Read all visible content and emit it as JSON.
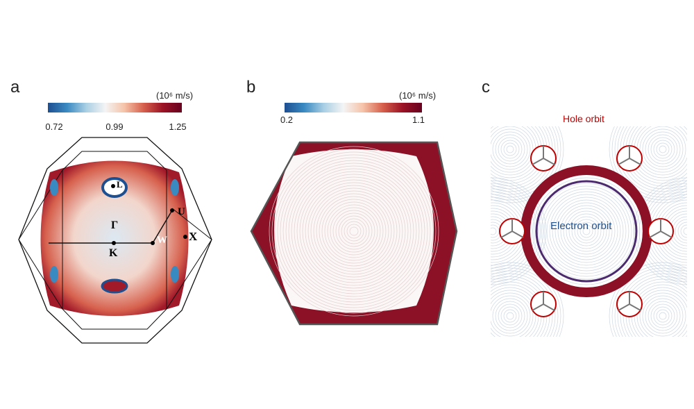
{
  "panels": [
    {
      "label": "a",
      "colorbar": {
        "unit": "(10⁶ m/s)",
        "ticks": [
          "0.72",
          "0.99",
          "1.25"
        ]
      },
      "points": {
        "gamma": "Γ",
        "k": "K",
        "w": "W",
        "u": "U",
        "x": "X",
        "l": "L"
      }
    },
    {
      "label": "b",
      "colorbar": {
        "unit": "(10⁶ m/s)",
        "ticks": [
          "0.2",
          "1.1"
        ]
      }
    },
    {
      "label": "c",
      "annotations": {
        "hole": "Hole orbit",
        "electron": "Electron orbit"
      }
    }
  ],
  "colors": {
    "low": "#1d4f91",
    "mid": "#f4f4f4",
    "high": "#67001f",
    "hole_orbit": "#c00000",
    "electron_orbit": "#4b2a6e",
    "electron_text": "#1f4e8c"
  }
}
